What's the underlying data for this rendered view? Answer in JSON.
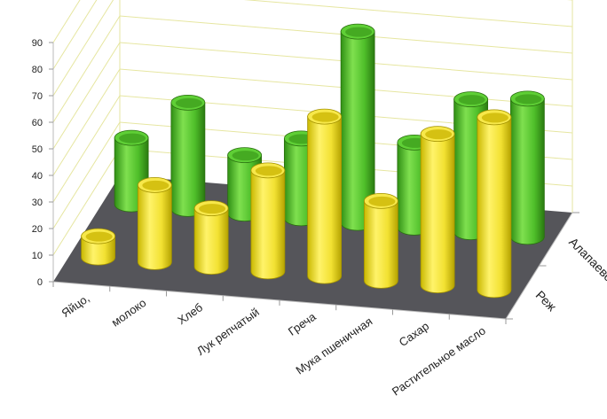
{
  "chart_data": {
    "type": "bar",
    "title": "",
    "xlabel": "",
    "ylabel": "",
    "ylim": [
      0,
      90
    ],
    "yticks": [
      0,
      10,
      20,
      30,
      40,
      50,
      60,
      70,
      80,
      90
    ],
    "categories": [
      "Яйцо,",
      "молоко",
      "Хлеб",
      "Лук репчатый",
      "Греча",
      "Мука пшеничная",
      "Сахар",
      "Растительное масло"
    ],
    "series": [
      {
        "name": "Реж",
        "color": "#f0e033",
        "values": [
          8,
          29,
          22,
          38,
          60,
          30,
          57,
          65
        ]
      },
      {
        "name": "Алапаевск",
        "color": "#4fbf2a",
        "values": [
          25,
          40,
          22,
          30,
          72,
          32,
          50,
          52
        ]
      }
    ],
    "grid": true,
    "floor_color": "#55555a",
    "wall_grid_color": "#e6e6a0"
  }
}
